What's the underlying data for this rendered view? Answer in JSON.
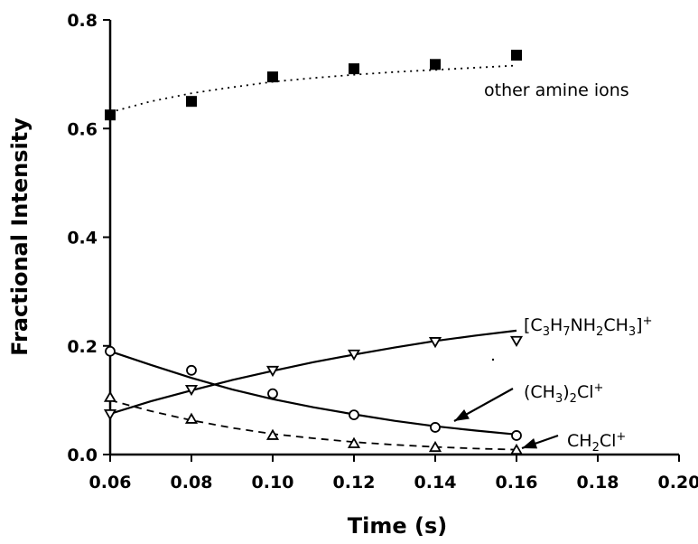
{
  "chart_data": {
    "type": "scatter",
    "xlabel": "Time (s)",
    "ylabel": "Fractional Intensity",
    "xlim": [
      0.06,
      0.2
    ],
    "ylim": [
      0.0,
      0.8
    ],
    "x_ticks": [
      "0.06",
      "0.08",
      "0.10",
      "0.12",
      "0.14",
      "0.16",
      "0.18",
      "0.20"
    ],
    "y_ticks": [
      "0.0",
      "0.2",
      "0.4",
      "0.6",
      "0.8"
    ],
    "grid": false,
    "series": [
      {
        "name": "other amine ions",
        "marker": "filled-square",
        "line_style": "dotted",
        "points": [
          [
            0.06,
            0.625
          ],
          [
            0.08,
            0.65
          ],
          [
            0.1,
            0.695
          ],
          [
            0.12,
            0.71
          ],
          [
            0.14,
            0.718
          ],
          [
            0.16,
            0.735
          ]
        ],
        "fit": [
          [
            0.06,
            0.63
          ],
          [
            0.07,
            0.65
          ],
          [
            0.08,
            0.665
          ],
          [
            0.09,
            0.676
          ],
          [
            0.1,
            0.686
          ],
          [
            0.11,
            0.693
          ],
          [
            0.12,
            0.699
          ],
          [
            0.13,
            0.704
          ],
          [
            0.14,
            0.708
          ],
          [
            0.15,
            0.712
          ],
          [
            0.16,
            0.716
          ]
        ]
      },
      {
        "name": "[C3H7NH2CH3]+",
        "marker": "open-triangle-down",
        "line_style": "solid",
        "points": [
          [
            0.06,
            0.075
          ],
          [
            0.08,
            0.12
          ],
          [
            0.1,
            0.155
          ],
          [
            0.12,
            0.185
          ],
          [
            0.14,
            0.208
          ],
          [
            0.16,
            0.21
          ]
        ],
        "fit": [
          [
            0.06,
            0.075
          ],
          [
            0.07,
            0.098
          ],
          [
            0.08,
            0.118
          ],
          [
            0.09,
            0.137
          ],
          [
            0.1,
            0.154
          ],
          [
            0.11,
            0.17
          ],
          [
            0.12,
            0.184
          ],
          [
            0.13,
            0.197
          ],
          [
            0.14,
            0.209
          ],
          [
            0.15,
            0.219
          ],
          [
            0.16,
            0.228
          ]
        ]
      },
      {
        "name": "(CH3)2Cl+",
        "marker": "open-circle",
        "line_style": "solid",
        "points": [
          [
            0.06,
            0.19
          ],
          [
            0.08,
            0.155
          ],
          [
            0.1,
            0.112
          ],
          [
            0.12,
            0.073
          ],
          [
            0.14,
            0.05
          ],
          [
            0.16,
            0.035
          ]
        ],
        "fit": [
          [
            0.06,
            0.19
          ],
          [
            0.07,
            0.165
          ],
          [
            0.08,
            0.141
          ],
          [
            0.09,
            0.12
          ],
          [
            0.1,
            0.102
          ],
          [
            0.11,
            0.087
          ],
          [
            0.12,
            0.074
          ],
          [
            0.13,
            0.062
          ],
          [
            0.14,
            0.052
          ],
          [
            0.15,
            0.044
          ],
          [
            0.16,
            0.037
          ]
        ]
      },
      {
        "name": "CH2Cl+",
        "marker": "open-triangle-up",
        "line_style": "dashed",
        "points": [
          [
            0.06,
            0.105
          ],
          [
            0.08,
            0.065
          ],
          [
            0.1,
            0.035
          ],
          [
            0.12,
            0.02
          ],
          [
            0.14,
            0.013
          ],
          [
            0.16,
            0.008
          ]
        ],
        "fit": [
          [
            0.06,
            0.1
          ],
          [
            0.07,
            0.08
          ],
          [
            0.08,
            0.063
          ],
          [
            0.09,
            0.049
          ],
          [
            0.1,
            0.038
          ],
          [
            0.11,
            0.03
          ],
          [
            0.12,
            0.023
          ],
          [
            0.13,
            0.018
          ],
          [
            0.14,
            0.014
          ],
          [
            0.15,
            0.011
          ],
          [
            0.16,
            0.009
          ]
        ]
      }
    ],
    "annotations": [
      {
        "id": "other",
        "text": "other amine ions"
      },
      {
        "id": "c3h7",
        "parts": [
          [
            "[C",
            ""
          ],
          [
            "3",
            "sub"
          ],
          [
            "H",
            ""
          ],
          [
            "7",
            "sub"
          ],
          [
            "NH",
            ""
          ],
          [
            "2",
            "sub"
          ],
          [
            "CH",
            ""
          ],
          [
            "3",
            "sub"
          ],
          [
            "]",
            ""
          ],
          [
            "+",
            "sup"
          ]
        ]
      },
      {
        "id": "ch32cl",
        "parts": [
          [
            "(CH",
            ""
          ],
          [
            "3",
            "sub"
          ],
          [
            ")",
            ""
          ],
          [
            "2",
            "sub"
          ],
          [
            "Cl",
            ""
          ],
          [
            "+",
            "sup"
          ]
        ]
      },
      {
        "id": "ch2cl",
        "parts": [
          [
            "CH",
            ""
          ],
          [
            "2",
            "sub"
          ],
          [
            "Cl",
            ""
          ],
          [
            "+",
            "sup"
          ]
        ]
      }
    ]
  }
}
